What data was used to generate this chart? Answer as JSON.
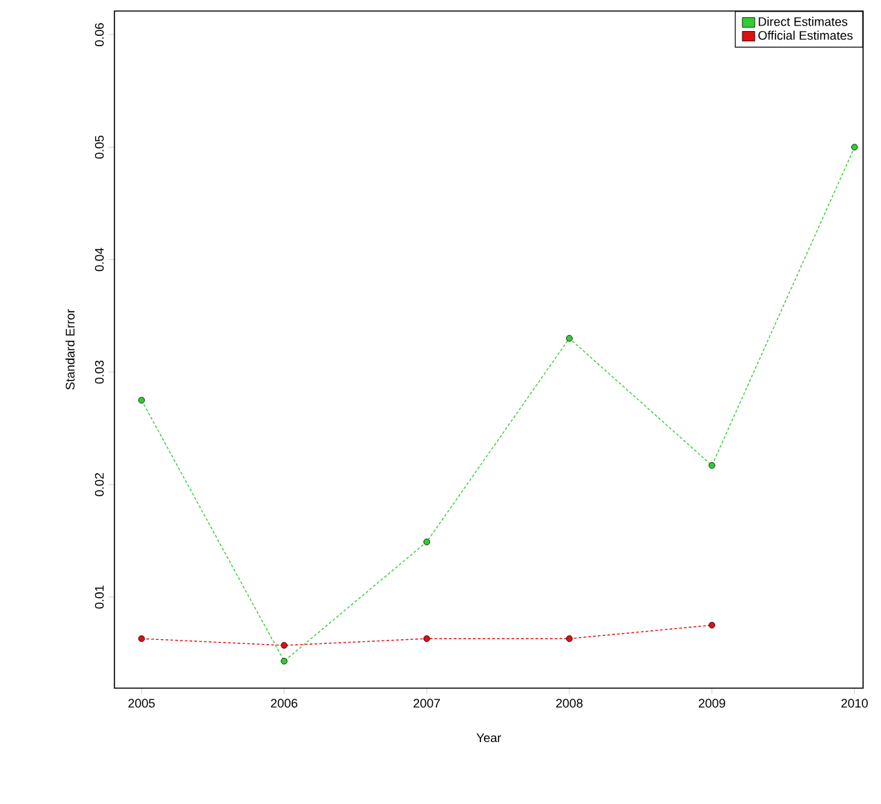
{
  "chart_data": {
    "type": "line",
    "xlabel": "Year",
    "ylabel": "Standard Error",
    "x": [
      2005,
      2006,
      2007,
      2008,
      2009,
      2010
    ],
    "series": [
      {
        "name": "Direct Estimates",
        "color": "#33cc33",
        "values": [
          0.0275,
          0.0043,
          0.0149,
          0.033,
          0.0217,
          0.05
        ]
      },
      {
        "name": "Official Estimates",
        "color": "#dd1111",
        "values": [
          0.0063,
          0.0057,
          0.0063,
          0.0063,
          0.0075,
          null
        ]
      }
    ],
    "xlim": [
      2004.81,
      2010.06
    ],
    "ylim": [
      0.0019,
      0.0621
    ],
    "xticks": [
      2005,
      2006,
      2007,
      2008,
      2009,
      2010
    ],
    "yticks": [
      0.01,
      0.02,
      0.03,
      0.04,
      0.05,
      0.06
    ],
    "legend": "top right",
    "marker": "circle",
    "line_style": "dotted",
    "grid": false
  }
}
